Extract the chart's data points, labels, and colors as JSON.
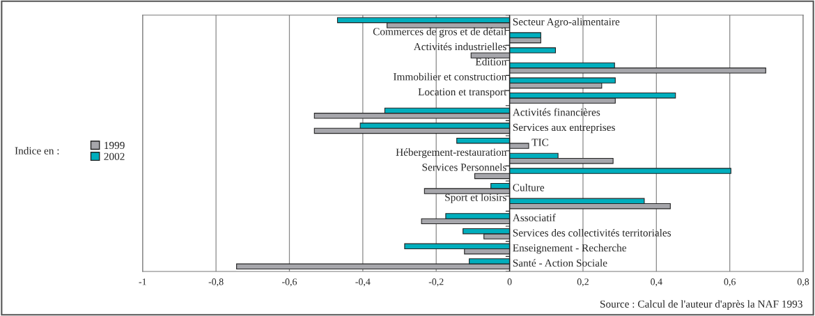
{
  "chart_data": {
    "type": "bar",
    "orientation": "horizontal",
    "categories": [
      "Secteur Agro-alimentaire",
      "Commerces de gros et de détail",
      "Activités industrielles",
      "Edition",
      "Immobilier et construction",
      "Location et transport",
      "Activités financières",
      "Services aux entreprises",
      "TIC",
      "Hébergement-restauration",
      "Services Personnels",
      "Culture",
      "Sport et loisirs",
      "Associatif",
      "Services des collectivités territoriales",
      "Enseignement - Recherche",
      "Santé - Action Sociale"
    ],
    "series": [
      {
        "name": "1999",
        "color": "#a6a6ab",
        "values": [
          -0.334,
          0.085,
          -0.105,
          0.698,
          0.251,
          0.288,
          -0.532,
          -0.532,
          0.052,
          0.282,
          -0.095,
          -0.232,
          0.438,
          -0.24,
          -0.07,
          -0.123,
          -0.744
        ]
      },
      {
        "name": "2002",
        "color": "#00aebd",
        "values": [
          -0.469,
          0.085,
          0.125,
          0.286,
          0.288,
          0.452,
          -0.34,
          -0.407,
          -0.144,
          0.132,
          0.603,
          -0.051,
          0.367,
          -0.174,
          -0.127,
          -0.286,
          -0.11
        ]
      }
    ],
    "xlim": [
      -1,
      0.8
    ],
    "xticks": [
      {
        "value": -1,
        "label": "-1"
      },
      {
        "value": -0.8,
        "label": "-0,8"
      },
      {
        "value": -0.6,
        "label": "-0,6"
      },
      {
        "value": -0.4,
        "label": "-0,4"
      },
      {
        "value": -0.2,
        "label": "-0,2"
      },
      {
        "value": 0,
        "label": "0"
      },
      {
        "value": 0.2,
        "label": "0,2"
      },
      {
        "value": 0.4,
        "label": "0,4"
      },
      {
        "value": 0.6,
        "label": "0,6"
      },
      {
        "value": 0.8,
        "label": "0,8"
      }
    ],
    "grid": "x",
    "legend": "left",
    "legend_title": "Indice en :",
    "annotations": [
      "Source : Calcul de l'auteur d'après la NAF 1993"
    ]
  }
}
